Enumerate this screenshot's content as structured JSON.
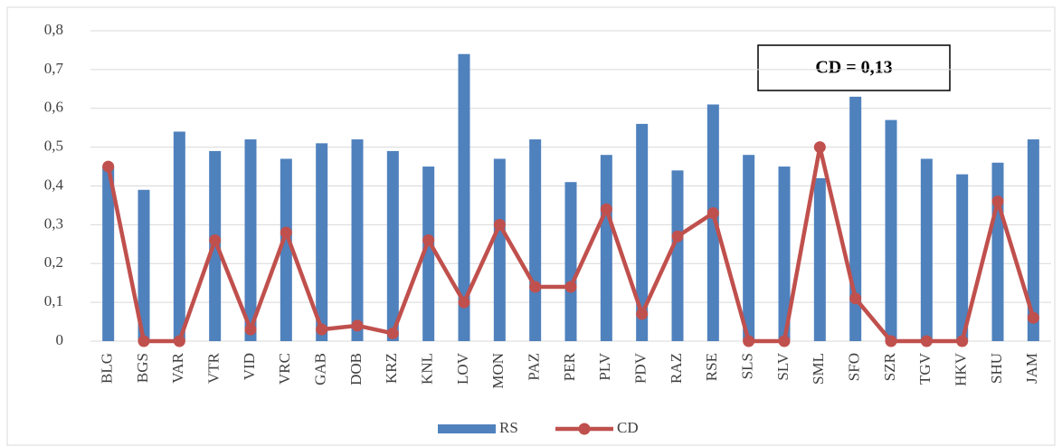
{
  "chart_data": {
    "type": "bar-line",
    "categories": [
      "BLG",
      "BGS",
      "VAR",
      "VTR",
      "VID",
      "VRC",
      "GAB",
      "DOB",
      "KRZ",
      "KNL",
      "LOV",
      "MON",
      "PAZ",
      "PER",
      "PLV",
      "PDV",
      "RAZ",
      "RSE",
      "SLS",
      "SLV",
      "SML",
      "SFO",
      "SZR",
      "TGV",
      "HKV",
      "SHU",
      "JAM"
    ],
    "series": [
      {
        "name": "RS",
        "type": "bar",
        "color": "#4f81bd",
        "values": [
          0.45,
          0.39,
          0.54,
          0.49,
          0.52,
          0.47,
          0.51,
          0.52,
          0.49,
          0.45,
          0.74,
          0.47,
          0.52,
          0.41,
          0.48,
          0.56,
          0.44,
          0.61,
          0.48,
          0.45,
          0.42,
          0.63,
          0.57,
          0.47,
          0.43,
          0.46,
          0.52
        ]
      },
      {
        "name": "CD",
        "type": "line",
        "color": "#c0504d",
        "values": [
          0.45,
          0,
          0,
          0.26,
          0.03,
          0.28,
          0.03,
          0.04,
          0.02,
          0.26,
          0.1,
          0.3,
          0.14,
          0.14,
          0.34,
          0.07,
          0.27,
          0.33,
          0,
          0,
          0.5,
          0.11,
          0,
          0,
          0,
          0.36,
          0.06
        ]
      }
    ],
    "ylim": [
      0,
      0.8
    ],
    "yticks": [
      0,
      {
        "value": 0.1,
        "label": "0,1"
      },
      {
        "value": 0.2,
        "label": "0,2"
      },
      {
        "value": 0.3,
        "label": "0,3"
      },
      {
        "value": 0.4,
        "label": "0,4"
      },
      {
        "value": 0.5,
        "label": "0,5"
      },
      {
        "value": 0.6,
        "label": "0,6"
      },
      {
        "value": 0.7,
        "label": "0,7"
      },
      {
        "value": 0.8,
        "label": "0,8"
      }
    ],
    "grid": true,
    "legend": "bottom",
    "annotation": "CD = 0,13"
  }
}
